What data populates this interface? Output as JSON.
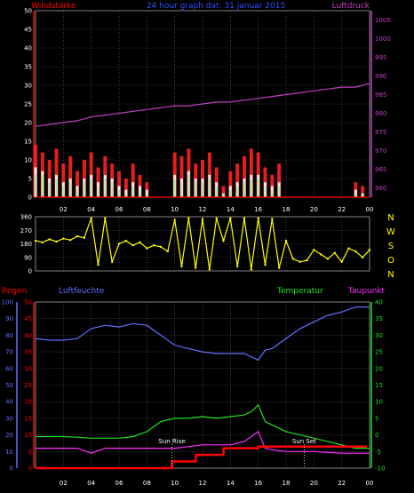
{
  "title": "24 hour graph dat: 31 januar 2015",
  "colors": {
    "background": "#000000",
    "grid": "#6a6a6a",
    "wind_axis": "#ff0000",
    "pressure": "#c040c0",
    "wind_avg": "#ffffff",
    "gust": "#ff2020",
    "speed": "#a0f0a0",
    "direction": "#ffff00",
    "dir_axis": "#ffff00",
    "rain": "#ff0000",
    "humidity": "#6070ff",
    "temperature": "#20e020",
    "dewpoint": "#ff30ff",
    "sun": "#ffffff"
  },
  "time_ticks": [
    "02",
    "04",
    "06",
    "08",
    "10",
    "12",
    "14",
    "16",
    "18",
    "20",
    "22",
    "00"
  ],
  "chart_data": [
    {
      "type": "line",
      "name": "wind",
      "labels": {
        "left": "Windstärke",
        "right": "Luftdruck"
      },
      "left_ticks": [
        0,
        5,
        10,
        15,
        20,
        25,
        30,
        35,
        40,
        45,
        50
      ],
      "right_ticks": [
        960,
        965,
        970,
        975,
        980,
        985,
        990,
        995,
        1000,
        1005
      ],
      "ylim_left": [
        0,
        50
      ],
      "ylim_right": [
        957.5,
        1007.5
      ],
      "series": [
        {
          "id": "pressure",
          "axis": "right",
          "x": [
            0,
            1,
            2,
            3,
            4,
            5,
            6,
            7,
            8,
            9,
            10,
            11,
            12,
            13,
            14,
            15,
            16,
            17,
            18,
            19,
            20,
            21,
            22,
            23,
            24
          ],
          "values": [
            976.5,
            977,
            977.5,
            978,
            979,
            979.5,
            980,
            980.5,
            981,
            981.5,
            982,
            982,
            982.5,
            983,
            983,
            983.5,
            984,
            984.5,
            985,
            985.5,
            986,
            986.5,
            987,
            987,
            988
          ]
        },
        {
          "id": "gust",
          "axis": "left",
          "x": [
            0,
            0.5,
            1,
            1.5,
            2,
            2.5,
            3,
            3.5,
            4,
            4.5,
            5,
            5.5,
            6,
            6.5,
            7,
            7.5,
            8,
            8.5,
            9,
            9.5,
            10,
            10.5,
            11,
            11.5,
            12,
            12.5,
            13,
            13.5,
            14,
            14.5,
            15,
            15.5,
            16,
            16.5,
            17,
            17.5,
            18,
            18.5,
            19,
            19.5,
            20,
            20.5,
            21,
            21.5,
            22,
            22.5,
            23,
            23.5,
            24
          ],
          "values": [
            14,
            12,
            10,
            13,
            9,
            11,
            7,
            10,
            12,
            8,
            11,
            9,
            7,
            5,
            9,
            6,
            4,
            0,
            0,
            0,
            12,
            11,
            13,
            9,
            10,
            12,
            8,
            3,
            7,
            9,
            11,
            13,
            12,
            8,
            6,
            9,
            0,
            0,
            0,
            0,
            0,
            0,
            0,
            0,
            0,
            0,
            4,
            3,
            0
          ]
        },
        {
          "id": "wind_avg",
          "axis": "left",
          "x": [
            0,
            0.5,
            1,
            1.5,
            2,
            2.5,
            3,
            3.5,
            4,
            4.5,
            5,
            5.5,
            6,
            6.5,
            7,
            7.5,
            8,
            8.5,
            9,
            9.5,
            10,
            10.5,
            11,
            11.5,
            12,
            12.5,
            13,
            13.5,
            14,
            14.5,
            15,
            15.5,
            16,
            16.5,
            17,
            17.5,
            18,
            18.5,
            19,
            19.5,
            20,
            20.5,
            21,
            21.5,
            22,
            22.5,
            23,
            23.5,
            24
          ],
          "values": [
            8,
            7,
            5,
            6,
            4,
            5,
            3,
            5,
            6,
            4,
            6,
            5,
            3,
            2,
            4,
            3,
            2,
            0,
            0,
            0,
            6,
            5,
            7,
            5,
            5,
            6,
            4,
            1,
            3,
            4,
            5,
            6,
            6,
            4,
            3,
            4,
            0,
            0,
            0,
            0,
            0,
            0,
            0,
            0,
            0,
            0,
            2,
            1,
            0
          ]
        },
        {
          "id": "speed",
          "axis": "left",
          "x": [
            0,
            0.5,
            1,
            1.5,
            2,
            2.5,
            3,
            3.5,
            4,
            4.5,
            5,
            5.5,
            6,
            6.5,
            7,
            7.5,
            8,
            8.5,
            9,
            9.5,
            10,
            10.5,
            11,
            11.5,
            12,
            12.5,
            13,
            13.5,
            14,
            14.5,
            15,
            15.5,
            16,
            16.5,
            17,
            17.5,
            18,
            18.5,
            19,
            19.5,
            20,
            20.5,
            21,
            21.5,
            22,
            22.5,
            23,
            23.5,
            24
          ],
          "values": [
            6,
            6,
            4,
            5,
            3,
            4,
            2,
            4,
            5,
            3,
            5,
            4,
            2,
            1,
            3,
            2,
            1,
            0,
            0,
            0,
            5,
            4,
            6,
            4,
            4,
            5,
            3,
            1,
            2,
            3,
            4,
            5,
            5,
            3,
            2,
            3,
            0,
            0,
            0,
            0,
            0,
            0,
            0,
            0,
            0,
            0,
            1,
            1,
            0
          ]
        }
      ]
    },
    {
      "type": "scatter",
      "name": "direction",
      "left_ticks": [
        0,
        90,
        180,
        270,
        360
      ],
      "right_labels": [
        "N",
        "W",
        "S",
        "O",
        "N"
      ],
      "ylim": [
        0,
        360
      ],
      "series": [
        {
          "id": "direction",
          "x": [
            0,
            0.5,
            1,
            1.5,
            2,
            2.5,
            3,
            3.5,
            4,
            4.5,
            5,
            5.5,
            6,
            6.5,
            7,
            7.5,
            8,
            8.5,
            9,
            9.5,
            10,
            10.5,
            11,
            11.5,
            12,
            12.5,
            13,
            13.5,
            14,
            14.5,
            15,
            15.5,
            16,
            16.5,
            17,
            17.5,
            18,
            18.5,
            19,
            19.5,
            20,
            20.5,
            21,
            21.5,
            22,
            22.5,
            23,
            23.5,
            24
          ],
          "values": [
            200,
            190,
            210,
            195,
            215,
            205,
            230,
            220,
            350,
            40,
            350,
            60,
            180,
            200,
            170,
            190,
            150,
            170,
            160,
            130,
            340,
            30,
            350,
            20,
            345,
            10,
            350,
            200,
            350,
            30,
            350,
            10,
            350,
            40,
            345,
            20,
            200,
            80,
            60,
            70,
            140,
            110,
            80,
            120,
            60,
            150,
            130,
            90,
            140
          ]
        }
      ]
    },
    {
      "type": "line",
      "name": "weather",
      "labels": {
        "left1": "Regen",
        "left2": "Luftfeuchte",
        "right1": "Temperatur",
        "right2": "Taupunkt"
      },
      "rain_ticks": [
        0,
        5,
        10,
        15,
        20,
        25,
        30,
        35,
        40,
        45,
        50
      ],
      "humidity_ticks": [
        0,
        10,
        20,
        30,
        40,
        50,
        60,
        70,
        80,
        90,
        100
      ],
      "temp_ticks": [
        -10,
        -5,
        0,
        5,
        10,
        15,
        20,
        25,
        30,
        35,
        40
      ],
      "annotations": [
        "Sun Rise",
        "Sun Set"
      ],
      "sun_times": [
        9.8,
        19.3
      ],
      "series": [
        {
          "id": "humidity",
          "axis": "humidity",
          "x": [
            0,
            1,
            2,
            3,
            4,
            5,
            6,
            7,
            8,
            9,
            10,
            11,
            12,
            13,
            14,
            15,
            16,
            16.5,
            17,
            18,
            19,
            20,
            21,
            22,
            23,
            24
          ],
          "values": [
            78,
            77,
            77,
            78,
            84,
            86,
            85,
            87,
            86,
            80,
            74,
            72,
            70,
            69,
            69,
            69,
            65,
            71,
            72,
            78,
            84,
            88,
            92,
            94,
            97,
            97
          ]
        },
        {
          "id": "temperature",
          "axis": "temp",
          "x": [
            0,
            1,
            2,
            3,
            4,
            5,
            6,
            7,
            8,
            9,
            10,
            11,
            12,
            13,
            14,
            15,
            15.5,
            16,
            16.5,
            17,
            18,
            19,
            20,
            21,
            22,
            23,
            24
          ],
          "values": [
            -0.5,
            -0.5,
            -0.5,
            -0.7,
            -1,
            -1,
            -1,
            -0.5,
            1,
            4,
            5,
            5,
            5.5,
            5,
            5.5,
            6,
            7,
            9,
            4,
            3,
            1,
            0,
            -1,
            -2,
            -3,
            -4,
            -4
          ]
        },
        {
          "id": "dewpoint",
          "axis": "temp",
          "x": [
            0,
            1,
            2,
            3,
            4,
            5,
            6,
            7,
            8,
            9,
            10,
            11,
            12,
            13,
            14,
            15,
            16,
            16.5,
            17,
            18,
            19,
            20,
            21,
            22,
            23,
            24
          ],
          "values": [
            -4,
            -4,
            -4,
            -4,
            -5.5,
            -4,
            -4,
            -4,
            -4,
            -4,
            -4,
            -3.5,
            -3,
            -3,
            -3,
            -2,
            1,
            -4,
            -4.5,
            -5,
            -5,
            -5,
            -5.3,
            -5.5,
            -5.5,
            -5.5
          ]
        },
        {
          "id": "rain",
          "axis": "rain",
          "x": [
            0,
            2,
            4,
            6,
            8,
            9.8,
            9.81,
            11.5,
            11.51,
            13.5,
            13.51,
            16,
            16.01,
            18,
            20,
            22,
            23.8
          ],
          "values": [
            0,
            0,
            0,
            0,
            0,
            0,
            2,
            2,
            4,
            4,
            6,
            6,
            6.5,
            6.5,
            6.5,
            6.5,
            6.5
          ]
        }
      ]
    }
  ]
}
